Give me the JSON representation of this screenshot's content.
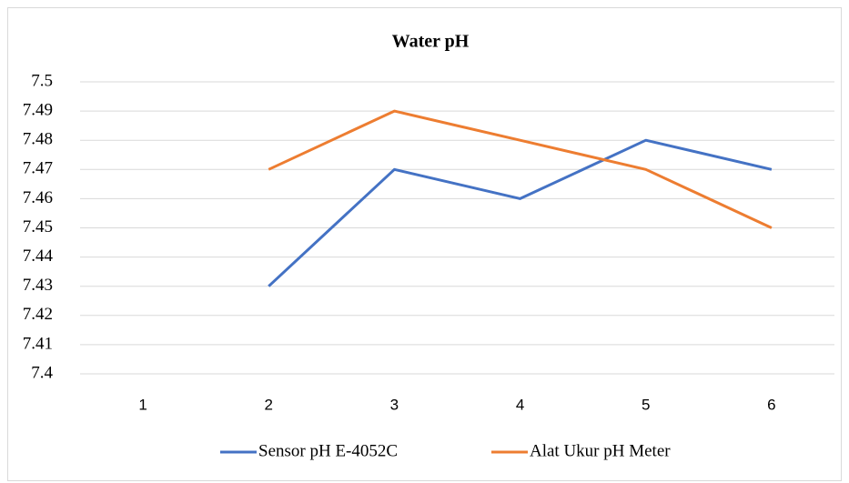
{
  "chart_data": {
    "type": "line",
    "title": "Water pH",
    "categories": [
      "1",
      "2",
      "3",
      "4",
      "5",
      "6"
    ],
    "series": [
      {
        "name": "Sensor pH E-4052C",
        "color": "#4472c4",
        "values": [
          null,
          7.43,
          7.47,
          7.46,
          7.48,
          7.47
        ]
      },
      {
        "name": "Alat Ukur pH Meter",
        "color": "#ed7d31",
        "values": [
          null,
          7.47,
          7.49,
          7.48,
          7.47,
          7.45
        ]
      }
    ],
    "ylim": [
      7.4,
      7.5
    ],
    "yticks": [
      7.4,
      7.41,
      7.42,
      7.43,
      7.44,
      7.45,
      7.46,
      7.47,
      7.48,
      7.49,
      7.5
    ],
    "grid": true,
    "legend": "bottom"
  }
}
